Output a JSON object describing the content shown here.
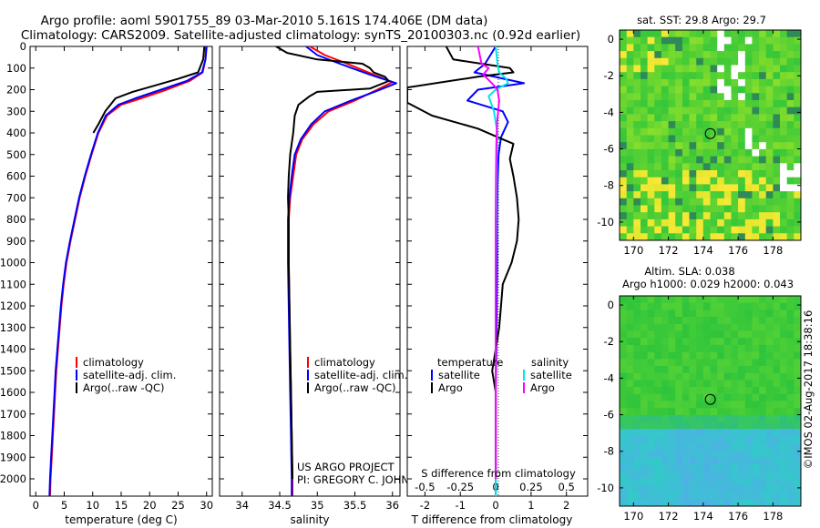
{
  "header": {
    "line1": "Argo profile: aoml 5901755_89 03-Mar-2010 5.161S 174.406E (DM data)",
    "line2": "Climatology: CARS2009. Satellite-adjusted climatology: synTS_20100303.nc (0.92d earlier)"
  },
  "depth_axis": {
    "ticks": [
      0,
      100,
      200,
      300,
      400,
      500,
      600,
      700,
      800,
      900,
      1000,
      1100,
      1200,
      1300,
      1400,
      1500,
      1600,
      1700,
      1800,
      1900,
      2000
    ],
    "range": [
      0,
      2080
    ]
  },
  "colors": {
    "climatology": "#ff0000",
    "satellite": "#0000ff",
    "argo": "#000000",
    "sat_salinity": "#00e5ee",
    "argo_salinity": "#ff00ff"
  },
  "chart_data": [
    {
      "type": "line",
      "id": "temperature",
      "xlabel": "temperature (deg C)",
      "xlim": [
        -1,
        31
      ],
      "xticks": [
        0,
        5,
        10,
        15,
        20,
        25,
        30
      ],
      "ylim": [
        2080,
        0
      ],
      "legend": [
        "climatology",
        "satellite-adj. clim.",
        "Argo(..raw -QC)"
      ],
      "series": [
        {
          "name": "climatology",
          "points": [
            [
              29.9,
              0
            ],
            [
              29.8,
              60
            ],
            [
              29.3,
              120
            ],
            [
              27,
              160
            ],
            [
              23,
              200
            ],
            [
              18.5,
              240
            ],
            [
              15,
              270
            ],
            [
              12.5,
              320
            ],
            [
              11,
              400
            ],
            [
              9.8,
              500
            ],
            [
              8.7,
              600
            ],
            [
              7.7,
              700
            ],
            [
              6.9,
              800
            ],
            [
              6.1,
              900
            ],
            [
              5.4,
              1000
            ],
            [
              4.9,
              1100
            ],
            [
              4.5,
              1200
            ],
            [
              4.2,
              1300
            ],
            [
              3.9,
              1400
            ],
            [
              3.6,
              1500
            ],
            [
              3.4,
              1600
            ],
            [
              3.2,
              1700
            ],
            [
              3.0,
              1800
            ],
            [
              2.8,
              1900
            ],
            [
              2.6,
              2000
            ],
            [
              2.5,
              2080
            ]
          ]
        },
        {
          "name": "satellite",
          "points": [
            [
              30.0,
              0
            ],
            [
              29.8,
              60
            ],
            [
              29.2,
              120
            ],
            [
              26.5,
              160
            ],
            [
              22,
              200
            ],
            [
              17.5,
              240
            ],
            [
              14.5,
              270
            ],
            [
              12.3,
              320
            ],
            [
              10.9,
              400
            ],
            [
              9.7,
              500
            ],
            [
              8.6,
              600
            ],
            [
              7.6,
              700
            ],
            [
              6.8,
              800
            ],
            [
              6.0,
              900
            ],
            [
              5.3,
              1000
            ],
            [
              4.8,
              1100
            ],
            [
              4.4,
              1200
            ],
            [
              4.1,
              1300
            ],
            [
              3.8,
              1400
            ],
            [
              3.5,
              1500
            ],
            [
              3.3,
              1600
            ],
            [
              3.1,
              1700
            ],
            [
              2.9,
              1800
            ],
            [
              2.7,
              1900
            ],
            [
              2.5,
              2000
            ],
            [
              2.4,
              2080
            ]
          ]
        },
        {
          "name": "argo",
          "points": [
            [
              29.6,
              0
            ],
            [
              29.4,
              60
            ],
            [
              28.5,
              120
            ],
            [
              25,
              150
            ],
            [
              21,
              180
            ],
            [
              17,
              210
            ],
            [
              14,
              240
            ],
            [
              12.2,
              300
            ],
            [
              11,
              360
            ],
            [
              10.1,
              400
            ]
          ]
        }
      ]
    },
    {
      "type": "line",
      "id": "salinity",
      "xlabel": "salinity",
      "xlim": [
        33.7,
        36.1
      ],
      "xticks": [
        34,
        34.5,
        35,
        35.5,
        36
      ],
      "ylim": [
        2080,
        0
      ],
      "legend": [
        "climatology",
        "satellite-adj. clim.",
        "Argo(..raw -QC)"
      ],
      "series": [
        {
          "name": "climatology",
          "points": [
            [
              34.9,
              0
            ],
            [
              35.1,
              40
            ],
            [
              35.4,
              80
            ],
            [
              35.75,
              130
            ],
            [
              36.0,
              165
            ],
            [
              35.8,
              200
            ],
            [
              35.5,
              250
            ],
            [
              35.15,
              300
            ],
            [
              34.95,
              360
            ],
            [
              34.8,
              430
            ],
            [
              34.72,
              500
            ],
            [
              34.68,
              600
            ],
            [
              34.64,
              700
            ],
            [
              34.62,
              800
            ],
            [
              34.62,
              900
            ],
            [
              34.62,
              1000
            ],
            [
              34.63,
              1200
            ],
            [
              34.64,
              1400
            ],
            [
              34.65,
              1600
            ],
            [
              34.66,
              1800
            ],
            [
              34.67,
              2000
            ],
            [
              34.67,
              2080
            ]
          ]
        },
        {
          "name": "satellite",
          "points": [
            [
              34.85,
              0
            ],
            [
              35.0,
              40
            ],
            [
              35.3,
              80
            ],
            [
              35.7,
              130
            ],
            [
              36.05,
              170
            ],
            [
              35.8,
              205
            ],
            [
              35.45,
              250
            ],
            [
              35.1,
              300
            ],
            [
              34.92,
              360
            ],
            [
              34.78,
              430
            ],
            [
              34.7,
              500
            ],
            [
              34.66,
              600
            ],
            [
              34.63,
              700
            ],
            [
              34.61,
              800
            ],
            [
              34.61,
              900
            ],
            [
              34.61,
              1000
            ],
            [
              34.62,
              1200
            ],
            [
              34.63,
              1400
            ],
            [
              34.64,
              1600
            ],
            [
              34.65,
              1800
            ],
            [
              34.66,
              2000
            ],
            [
              34.66,
              2080
            ]
          ]
        },
        {
          "name": "argo",
          "points": [
            [
              34.45,
              0
            ],
            [
              34.6,
              30
            ],
            [
              35.0,
              60
            ],
            [
              35.6,
              80
            ],
            [
              35.7,
              100
            ],
            [
              35.75,
              120
            ],
            [
              35.9,
              140
            ],
            [
              35.95,
              160
            ],
            [
              35.7,
              195
            ],
            [
              35.0,
              210
            ],
            [
              34.9,
              230
            ],
            [
              34.75,
              270
            ],
            [
              34.7,
              320
            ],
            [
              34.68,
              400
            ],
            [
              34.64,
              500
            ],
            [
              34.62,
              600
            ],
            [
              34.61,
              700
            ],
            [
              34.62,
              800
            ],
            [
              34.62,
              900
            ],
            [
              34.62,
              1000
            ],
            [
              34.63,
              1200
            ],
            [
              34.64,
              1400
            ],
            [
              34.65,
              1600
            ],
            [
              34.66,
              1800
            ],
            [
              34.67,
              2000
            ]
          ]
        }
      ]
    },
    {
      "type": "line",
      "id": "difference",
      "xlabel_top": "S difference from climatology",
      "xlabel": "T difference from climatology",
      "xlim": [
        -2.5,
        2.6
      ],
      "xticks": [
        -2,
        -1,
        0,
        1,
        2
      ],
      "xticks_top": [
        "-0.5",
        "-0.25",
        "0",
        "0.25",
        "0.5"
      ],
      "ylim": [
        2080,
        0
      ],
      "legend_titles": [
        "temperature",
        "salinity"
      ],
      "legend": [
        "satellite",
        "Argo",
        "satellite",
        "Argo"
      ],
      "series": [
        {
          "name": "T satellite",
          "points": [
            [
              0,
              0
            ],
            [
              -0.3,
              80
            ],
            [
              -0.6,
              120
            ],
            [
              0.8,
              170
            ],
            [
              -0.5,
              200
            ],
            [
              -0.8,
              250
            ],
            [
              0.2,
              300
            ],
            [
              0.35,
              350
            ],
            [
              0.15,
              420
            ],
            [
              0.08,
              500
            ],
            [
              0.05,
              650
            ],
            [
              0.04,
              800
            ],
            [
              0.04,
              1000
            ],
            [
              0.03,
              1200
            ],
            [
              0.02,
              1400
            ],
            [
              0,
              1600
            ],
            [
              0,
              1800
            ],
            [
              0,
              2080
            ]
          ]
        },
        {
          "name": "T argo",
          "points": [
            [
              -1.4,
              0
            ],
            [
              -1.2,
              60
            ],
            [
              0.4,
              100
            ],
            [
              0.5,
              120
            ],
            [
              -0.5,
              140
            ],
            [
              -2.5,
              190
            ],
            [
              -2.5,
              260
            ],
            [
              -1.8,
              320
            ],
            [
              -0.5,
              380
            ],
            [
              0.2,
              430
            ],
            [
              0.5,
              450
            ],
            [
              0.4,
              520
            ],
            [
              0.5,
              600
            ],
            [
              0.6,
              700
            ],
            [
              0.65,
              800
            ],
            [
              0.6,
              900
            ],
            [
              0.45,
              1000
            ],
            [
              0.2,
              1100
            ],
            [
              0.15,
              1200
            ],
            [
              0.1,
              1300
            ],
            [
              0,
              1400
            ],
            [
              -0.1,
              1500
            ],
            [
              0,
              1600
            ],
            [
              0,
              2000
            ]
          ]
        },
        {
          "name": "S satellite",
          "points": [
            [
              0,
              0
            ],
            [
              0.05,
              80
            ],
            [
              0.1,
              120
            ],
            [
              0.3,
              150
            ],
            [
              0.35,
              170
            ],
            [
              0,
              200
            ],
            [
              -0.2,
              230
            ],
            [
              -0.05,
              300
            ],
            [
              0.05,
              400
            ],
            [
              0.03,
              500
            ],
            [
              0.03,
              600
            ],
            [
              0.02,
              800
            ],
            [
              0.01,
              1000
            ],
            [
              0,
              1200
            ],
            [
              0,
              1400
            ],
            [
              0,
              1600
            ],
            [
              0,
              1800
            ],
            [
              0,
              2080
            ]
          ]
        },
        {
          "name": "S argo",
          "points": [
            [
              -0.5,
              0
            ],
            [
              -0.4,
              80
            ],
            [
              -0.2,
              100
            ],
            [
              -0.35,
              130
            ],
            [
              -0.05,
              180
            ],
            [
              0.05,
              200
            ],
            [
              0.1,
              250
            ],
            [
              0.04,
              350
            ],
            [
              0.02,
              450
            ],
            [
              0.01,
              600
            ],
            [
              0,
              800
            ],
            [
              0,
              1000
            ],
            [
              0,
              1200
            ],
            [
              0,
              1400
            ],
            [
              0,
              1600
            ],
            [
              0,
              1800
            ],
            [
              0,
              2000
            ]
          ]
        }
      ]
    },
    {
      "type": "heatmap",
      "id": "sst_map",
      "title": "sat. SST: 29.8  Argo: 29.7",
      "xticks": [
        170,
        172,
        174,
        176,
        178
      ],
      "yticks": [
        0,
        -2,
        -4,
        -6,
        -8,
        -10
      ],
      "xlim": [
        169.2,
        179.6
      ],
      "ylim": [
        -11,
        0.5
      ],
      "argo_location": [
        174.406,
        -5.161
      ]
    },
    {
      "type": "heatmap",
      "id": "sla_map",
      "title_line1": "Altim. SLA: 0.038",
      "title_line2": "Argo h1000: 0.029 h2000: 0.043",
      "xticks": [
        170,
        172,
        174,
        176,
        178
      ],
      "yticks": [
        0,
        -2,
        -4,
        -6,
        -8,
        -10
      ],
      "xlim": [
        169.2,
        179.6
      ],
      "ylim": [
        -11,
        0.5
      ],
      "argo_location": [
        174.406,
        -5.161
      ]
    }
  ],
  "annotation": {
    "line1": "US ARGO PROJECT",
    "line2": "PI: GREGORY C. JOHNSON"
  },
  "watermark": "©IMOS 02-Aug-2017 18:38:16"
}
